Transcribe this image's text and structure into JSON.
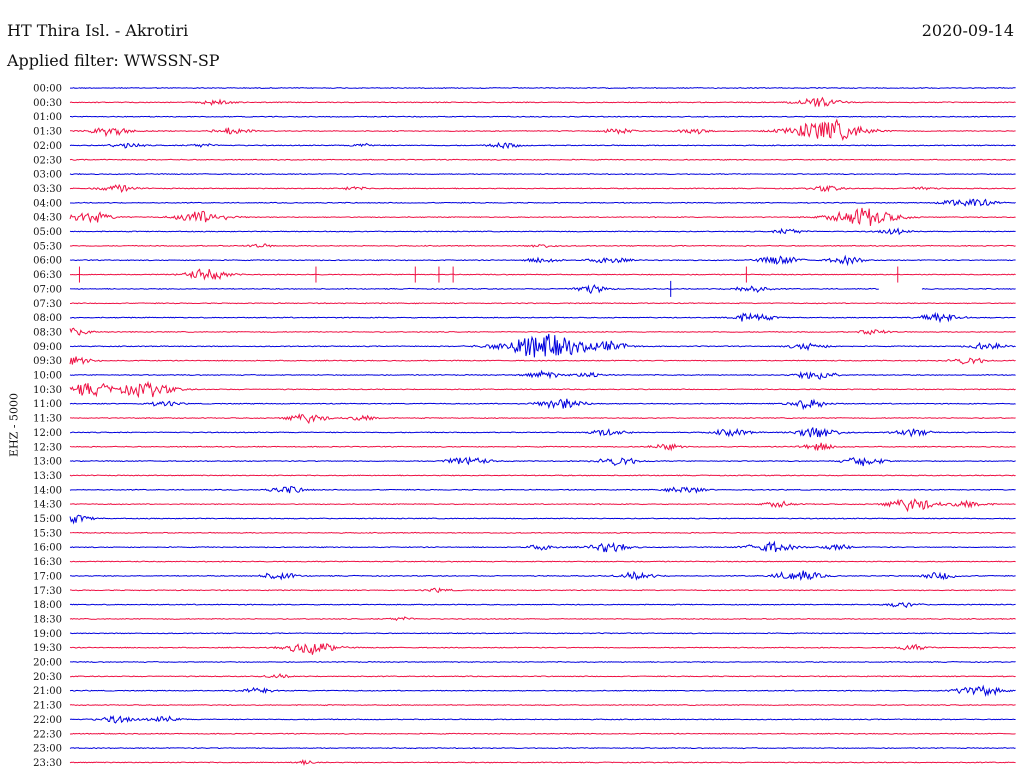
{
  "header": {
    "station": "HT Thira Isl. - Akrotiri",
    "date": "2020-09-14",
    "filter": "Applied filter: WWSSN-SP"
  },
  "colors": {
    "trace_a": "#0000dd",
    "trace_b": "#ee1144"
  },
  "chart_data": {
    "type": "line",
    "title": "HT Thira Isl. - Akrotiri",
    "subtitle": "Applied filter: WWSSN-SP",
    "ylabel": "EHZ - 5000",
    "xlabel": "",
    "grid": false,
    "legend": "none",
    "trace_window_minutes": 30,
    "rows": [
      {
        "label": "00:00",
        "events": []
      },
      {
        "label": "00:30",
        "events": [
          {
            "t": 0.155,
            "a": 3
          },
          {
            "t": 0.79,
            "a": 6
          }
        ]
      },
      {
        "label": "01:00",
        "events": []
      },
      {
        "label": "01:30",
        "events": [
          {
            "t": 0.045,
            "a": 5
          },
          {
            "t": 0.17,
            "a": 4
          },
          {
            "t": 0.58,
            "a": 3
          },
          {
            "t": 0.66,
            "a": 3
          },
          {
            "t": 0.8,
            "a": 12
          }
        ]
      },
      {
        "label": "02:00",
        "events": [
          {
            "t": 0.06,
            "a": 3
          },
          {
            "t": 0.14,
            "a": 2
          },
          {
            "t": 0.31,
            "a": 2
          },
          {
            "t": 0.46,
            "a": 3
          }
        ]
      },
      {
        "label": "02:30",
        "events": []
      },
      {
        "label": "03:00",
        "events": []
      },
      {
        "label": "03:30",
        "events": [
          {
            "t": 0.05,
            "a": 4
          },
          {
            "t": 0.3,
            "a": 2
          },
          {
            "t": 0.8,
            "a": 3
          },
          {
            "t": 0.9,
            "a": 2
          }
        ]
      },
      {
        "label": "04:00",
        "events": [
          {
            "t": 0.935,
            "a": 3
          },
          {
            "t": 0.96,
            "a": 4
          }
        ]
      },
      {
        "label": "04:30",
        "events": [
          {
            "t": 0.02,
            "a": 6
          },
          {
            "t": 0.14,
            "a": 7
          },
          {
            "t": 0.84,
            "a": 10
          }
        ]
      },
      {
        "label": "05:00",
        "events": [
          {
            "t": 0.76,
            "a": 3
          },
          {
            "t": 0.87,
            "a": 3
          }
        ]
      },
      {
        "label": "05:30",
        "events": [
          {
            "t": 0.2,
            "a": 2
          },
          {
            "t": 0.5,
            "a": 2
          }
        ]
      },
      {
        "label": "06:00",
        "events": [
          {
            "t": 0.5,
            "a": 3
          },
          {
            "t": 0.57,
            "a": 4
          },
          {
            "t": 0.75,
            "a": 5
          },
          {
            "t": 0.82,
            "a": 4
          }
        ]
      },
      {
        "label": "06:30",
        "events": [
          {
            "t": 0.145,
            "a": 6
          }
        ],
        "spikes": [
          0.01,
          0.26,
          0.365,
          0.39,
          0.405,
          0.715,
          0.875
        ]
      },
      {
        "label": "07:00",
        "events": [
          {
            "t": 0.55,
            "a": 4
          },
          {
            "t": 0.72,
            "a": 4
          }
        ],
        "spikes": [
          0.635
        ],
        "gap": [
          0.855,
          0.9
        ]
      },
      {
        "label": "07:30",
        "events": []
      },
      {
        "label": "08:00",
        "events": [
          {
            "t": 0.72,
            "a": 5
          },
          {
            "t": 0.92,
            "a": 5
          }
        ]
      },
      {
        "label": "08:30",
        "events": [
          {
            "t": 0.005,
            "a": 4
          },
          {
            "t": 0.85,
            "a": 3
          }
        ]
      },
      {
        "label": "09:00",
        "events": [
          {
            "t": 0.5,
            "a": 14
          },
          {
            "t": 0.57,
            "a": 5
          },
          {
            "t": 0.78,
            "a": 4
          },
          {
            "t": 0.97,
            "a": 4
          }
        ]
      },
      {
        "label": "09:30",
        "events": [
          {
            "t": 0.005,
            "a": 4
          },
          {
            "t": 0.95,
            "a": 4
          }
        ]
      },
      {
        "label": "10:00",
        "events": [
          {
            "t": 0.5,
            "a": 4
          },
          {
            "t": 0.55,
            "a": 3
          },
          {
            "t": 0.79,
            "a": 5
          }
        ]
      },
      {
        "label": "10:30",
        "events": [
          {
            "t": 0.02,
            "a": 7
          },
          {
            "t": 0.08,
            "a": 8
          }
        ]
      },
      {
        "label": "11:00",
        "events": [
          {
            "t": 0.1,
            "a": 3
          },
          {
            "t": 0.52,
            "a": 6
          },
          {
            "t": 0.78,
            "a": 5
          }
        ]
      },
      {
        "label": "11:30",
        "events": [
          {
            "t": 0.25,
            "a": 5
          },
          {
            "t": 0.31,
            "a": 3
          }
        ]
      },
      {
        "label": "12:00",
        "events": [
          {
            "t": 0.57,
            "a": 4
          },
          {
            "t": 0.7,
            "a": 4
          },
          {
            "t": 0.79,
            "a": 6
          },
          {
            "t": 0.89,
            "a": 4
          }
        ]
      },
      {
        "label": "12:30",
        "events": [
          {
            "t": 0.63,
            "a": 3
          },
          {
            "t": 0.79,
            "a": 4
          }
        ]
      },
      {
        "label": "13:00",
        "events": [
          {
            "t": 0.42,
            "a": 5
          },
          {
            "t": 0.58,
            "a": 5
          },
          {
            "t": 0.84,
            "a": 5
          }
        ]
      },
      {
        "label": "13:30",
        "events": []
      },
      {
        "label": "14:00",
        "events": [
          {
            "t": 0.23,
            "a": 4
          },
          {
            "t": 0.65,
            "a": 4
          }
        ]
      },
      {
        "label": "14:30",
        "events": [
          {
            "t": 0.75,
            "a": 3
          },
          {
            "t": 0.89,
            "a": 7
          },
          {
            "t": 0.95,
            "a": 4
          }
        ]
      },
      {
        "label": "15:00",
        "events": [
          {
            "t": 0.005,
            "a": 4
          }
        ]
      },
      {
        "label": "15:30",
        "events": []
      },
      {
        "label": "16:00",
        "events": [
          {
            "t": 0.5,
            "a": 3
          },
          {
            "t": 0.57,
            "a": 5
          },
          {
            "t": 0.74,
            "a": 6
          },
          {
            "t": 0.81,
            "a": 3
          }
        ]
      },
      {
        "label": "16:30",
        "events": []
      },
      {
        "label": "17:00",
        "events": [
          {
            "t": 0.22,
            "a": 4
          },
          {
            "t": 0.6,
            "a": 4
          },
          {
            "t": 0.77,
            "a": 6
          },
          {
            "t": 0.92,
            "a": 4
          }
        ]
      },
      {
        "label": "17:30",
        "events": [
          {
            "t": 0.39,
            "a": 2
          }
        ]
      },
      {
        "label": "18:00",
        "events": [
          {
            "t": 0.88,
            "a": 3
          }
        ]
      },
      {
        "label": "18:30",
        "events": [
          {
            "t": 0.35,
            "a": 2
          }
        ]
      },
      {
        "label": "19:00",
        "events": []
      },
      {
        "label": "19:30",
        "events": [
          {
            "t": 0.255,
            "a": 7
          },
          {
            "t": 0.89,
            "a": 3
          }
        ]
      },
      {
        "label": "20:00",
        "events": []
      },
      {
        "label": "20:30",
        "events": [
          {
            "t": 0.22,
            "a": 2
          }
        ]
      },
      {
        "label": "21:00",
        "events": [
          {
            "t": 0.2,
            "a": 3
          },
          {
            "t": 0.96,
            "a": 6
          }
        ]
      },
      {
        "label": "21:30",
        "events": []
      },
      {
        "label": "22:00",
        "events": [
          {
            "t": 0.05,
            "a": 4
          },
          {
            "t": 0.1,
            "a": 3
          }
        ]
      },
      {
        "label": "22:30",
        "events": []
      },
      {
        "label": "23:00",
        "events": []
      },
      {
        "label": "23:30",
        "events": [
          {
            "t": 0.25,
            "a": 2
          }
        ]
      }
    ]
  }
}
